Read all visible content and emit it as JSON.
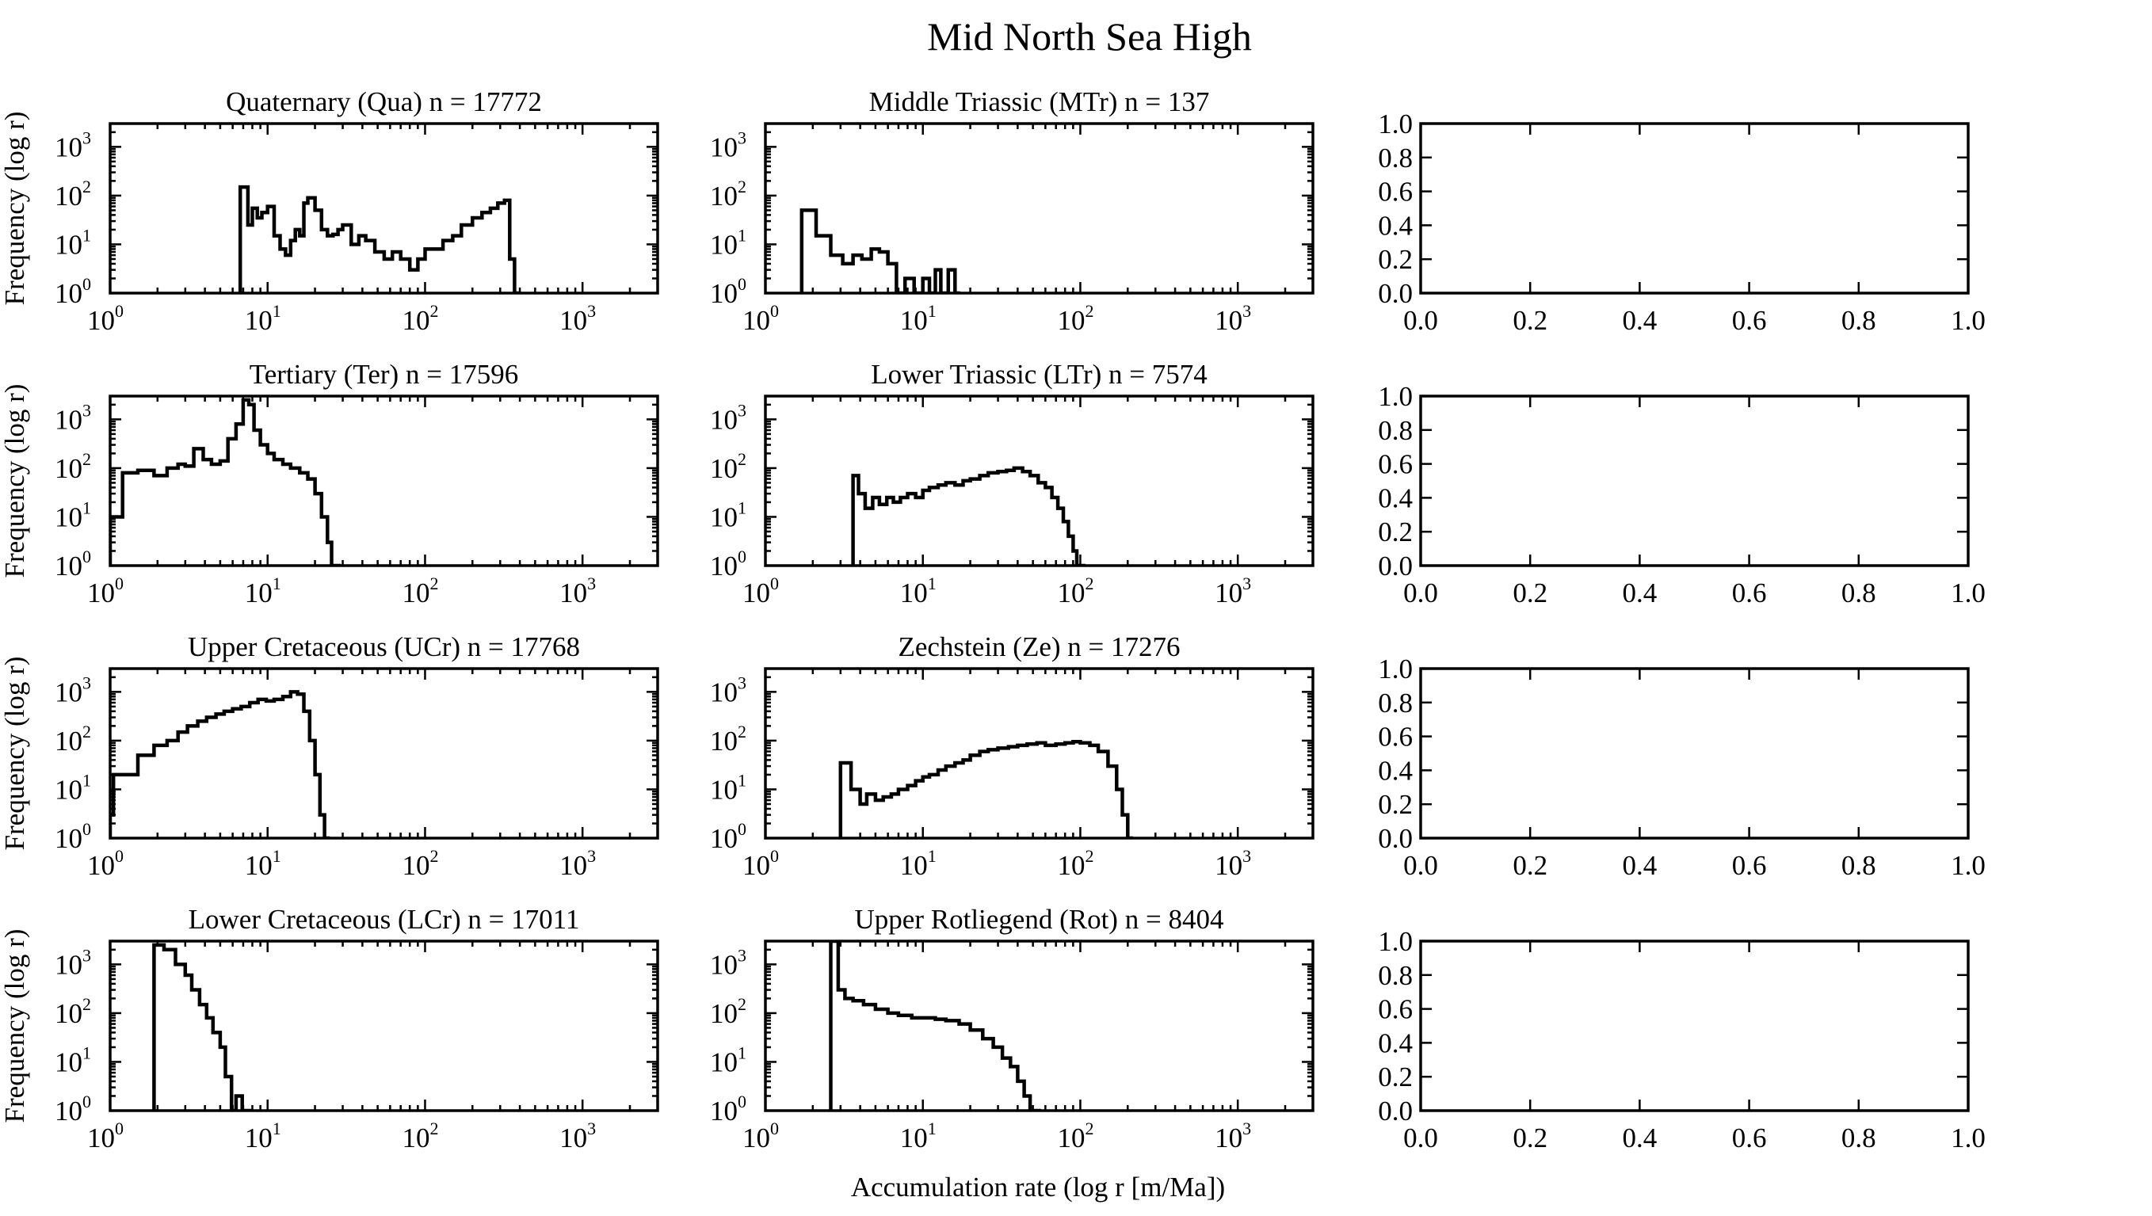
{
  "figure": {
    "title": "Mid North Sea High",
    "xlabel": "Accumulation rate (log r [m/Ma])",
    "ylabel": "Frequency (log r)"
  },
  "chart_data": [
    {
      "type": "histogram",
      "title": "Quaternary (Qua) n = 17772",
      "xscale": "log",
      "yscale": "log",
      "xlim": [
        1,
        3000
      ],
      "ylim": [
        1,
        3000
      ],
      "x": [
        6.7,
        7.5,
        8,
        8.6,
        9.2,
        10,
        11,
        12,
        13,
        14,
        15,
        16,
        17,
        18,
        20,
        22,
        24,
        26,
        28,
        30,
        34,
        38,
        42,
        48,
        55,
        62,
        70,
        80,
        90,
        100,
        115,
        130,
        150,
        170,
        200,
        230,
        260,
        290,
        320,
        345,
        370
      ],
      "y": [
        150,
        25,
        55,
        35,
        45,
        60,
        15,
        8,
        6,
        12,
        20,
        15,
        70,
        90,
        50,
        20,
        15,
        16,
        20,
        25,
        10,
        15,
        12,
        7,
        5,
        7,
        5,
        3,
        5,
        8,
        8,
        12,
        15,
        25,
        35,
        45,
        55,
        70,
        80,
        5,
        1
      ]
    },
    {
      "type": "histogram",
      "title": "Middle Triassic (MTr) n = 137",
      "xscale": "log",
      "yscale": "log",
      "xlim": [
        1,
        3000
      ],
      "ylim": [
        1,
        3000
      ],
      "x": [
        1.7,
        2.1,
        2.6,
        3.1,
        3.6,
        4.1,
        4.7,
        5.3,
        6,
        6.8,
        7.7,
        8.8,
        10,
        11,
        12,
        13,
        14.5,
        16
      ],
      "y": [
        50,
        15,
        6,
        4,
        6,
        5,
        8,
        7,
        4,
        1,
        2,
        1,
        2,
        1,
        3,
        1,
        3,
        1
      ]
    },
    {
      "type": "histogram",
      "title": "",
      "xscale": "linear",
      "yscale": "linear",
      "xlim": [
        0,
        1
      ],
      "ylim": [
        0,
        1
      ],
      "x": [],
      "y": []
    },
    {
      "type": "histogram",
      "title": "Tertiary (Ter) n = 17596",
      "xscale": "log",
      "yscale": "log",
      "xlim": [
        1,
        3000
      ],
      "ylim": [
        1,
        3000
      ],
      "x": [
        1,
        1.2,
        1.5,
        1.9,
        2.3,
        2.7,
        3,
        3.4,
        3.9,
        4.4,
        5,
        5.6,
        6.3,
        7,
        7.6,
        8.2,
        9,
        10,
        11,
        12.5,
        14,
        16,
        18,
        20,
        22,
        24,
        25.5,
        27
      ],
      "y": [
        10,
        80,
        90,
        70,
        100,
        120,
        110,
        250,
        150,
        120,
        140,
        400,
        800,
        2500,
        2000,
        600,
        300,
        200,
        150,
        120,
        100,
        80,
        60,
        30,
        10,
        3,
        1,
        1
      ]
    },
    {
      "type": "histogram",
      "title": "Lower Triassic (LTr) n = 7574",
      "xscale": "log",
      "yscale": "log",
      "xlim": [
        1,
        3000
      ],
      "ylim": [
        1,
        3000
      ],
      "x": [
        3.6,
        3.9,
        4.3,
        4.8,
        5.3,
        5.9,
        6.5,
        7.2,
        8,
        9,
        10,
        11,
        12.5,
        14,
        16,
        18,
        20,
        23,
        26,
        30,
        34,
        38,
        43,
        48,
        54,
        60,
        66,
        72,
        78,
        84,
        90,
        95,
        100
      ],
      "y": [
        70,
        30,
        15,
        25,
        18,
        25,
        20,
        25,
        30,
        25,
        35,
        40,
        45,
        50,
        45,
        55,
        60,
        70,
        80,
        85,
        90,
        100,
        85,
        70,
        50,
        40,
        25,
        15,
        8,
        4,
        2,
        1,
        1
      ]
    },
    {
      "type": "histogram",
      "title": "",
      "xscale": "linear",
      "yscale": "linear",
      "xlim": [
        0,
        1
      ],
      "ylim": [
        0,
        1
      ],
      "x": [],
      "y": []
    },
    {
      "type": "histogram",
      "title": "Upper Cretaceous (UCr) n = 17768",
      "xscale": "log",
      "yscale": "log",
      "xlim": [
        1,
        3000
      ],
      "ylim": [
        1,
        3000
      ],
      "x": [
        1,
        1.05,
        1.5,
        1.9,
        2.3,
        2.7,
        3.1,
        3.6,
        4.1,
        4.7,
        5.3,
        6,
        6.8,
        7.7,
        8.7,
        9.8,
        11,
        12.5,
        14,
        15.5,
        17,
        18.5,
        20,
        21.5,
        23
      ],
      "y": [
        3,
        20,
        50,
        80,
        100,
        150,
        200,
        250,
        300,
        350,
        400,
        450,
        500,
        600,
        700,
        650,
        700,
        800,
        1000,
        900,
        400,
        100,
        20,
        3,
        1
      ]
    },
    {
      "type": "histogram",
      "title": "Zechstein (Ze) n = 17276",
      "xscale": "log",
      "yscale": "log",
      "xlim": [
        1,
        3000
      ],
      "ylim": [
        1,
        3000
      ],
      "x": [
        3,
        3.5,
        4,
        4.4,
        5,
        5.6,
        6.3,
        7,
        8,
        9,
        10,
        11,
        12.5,
        14,
        16,
        18,
        20,
        23,
        26,
        30,
        35,
        40,
        46,
        53,
        60,
        70,
        80,
        90,
        100,
        115,
        130,
        150,
        170,
        185,
        200
      ],
      "y": [
        35,
        10,
        5,
        8,
        6,
        7,
        8,
        10,
        12,
        15,
        18,
        20,
        25,
        30,
        35,
        40,
        50,
        60,
        65,
        70,
        75,
        80,
        85,
        90,
        80,
        85,
        90,
        95,
        90,
        80,
        60,
        30,
        10,
        3,
        1
      ]
    },
    {
      "type": "histogram",
      "title": "",
      "xscale": "linear",
      "yscale": "linear",
      "xlim": [
        0,
        1
      ],
      "ylim": [
        0,
        1
      ],
      "x": [],
      "y": []
    },
    {
      "type": "histogram",
      "title": "Lower Cretaceous (LCr) n = 17011",
      "xscale": "log",
      "yscale": "log",
      "xlim": [
        1,
        3000
      ],
      "ylim": [
        1,
        3000
      ],
      "x": [
        1.9,
        2.2,
        2.6,
        3,
        3.3,
        3.7,
        4.1,
        4.5,
        5,
        5.4,
        5.9,
        6.3,
        6.9,
        7.3
      ],
      "y": [
        2500,
        2000,
        1000,
        600,
        300,
        150,
        80,
        40,
        20,
        5,
        1,
        2,
        1,
        1
      ]
    },
    {
      "type": "histogram",
      "title": "Upper Rotliegend (Rot) n = 8404",
      "xscale": "log",
      "yscale": "log",
      "xlim": [
        1,
        3000
      ],
      "ylim": [
        1,
        3000
      ],
      "x": [
        2.6,
        2.9,
        3.2,
        3.6,
        4.2,
        5,
        6,
        7,
        8.5,
        10,
        12,
        14,
        17,
        20,
        24,
        28,
        32,
        36,
        40,
        44,
        48,
        52
      ],
      "y": [
        3000,
        300,
        200,
        180,
        150,
        120,
        100,
        90,
        80,
        80,
        75,
        70,
        60,
        45,
        30,
        20,
        12,
        8,
        4,
        2,
        1,
        1
      ]
    },
    {
      "type": "histogram",
      "title": "",
      "xscale": "linear",
      "yscale": "linear",
      "xlim": [
        0,
        1
      ],
      "ylim": [
        0,
        1
      ],
      "x": [],
      "y": []
    }
  ],
  "ticks": {
    "log_x": [
      {
        "base": "10",
        "exp": "0"
      },
      {
        "base": "10",
        "exp": "1"
      },
      {
        "base": "10",
        "exp": "2"
      },
      {
        "base": "10",
        "exp": "3"
      }
    ],
    "log_y": [
      {
        "base": "10",
        "exp": "0"
      },
      {
        "base": "10",
        "exp": "1"
      },
      {
        "base": "10",
        "exp": "2"
      },
      {
        "base": "10",
        "exp": "3"
      }
    ],
    "lin": [
      "0.0",
      "0.2",
      "0.4",
      "0.6",
      "0.8",
      "1.0"
    ]
  }
}
